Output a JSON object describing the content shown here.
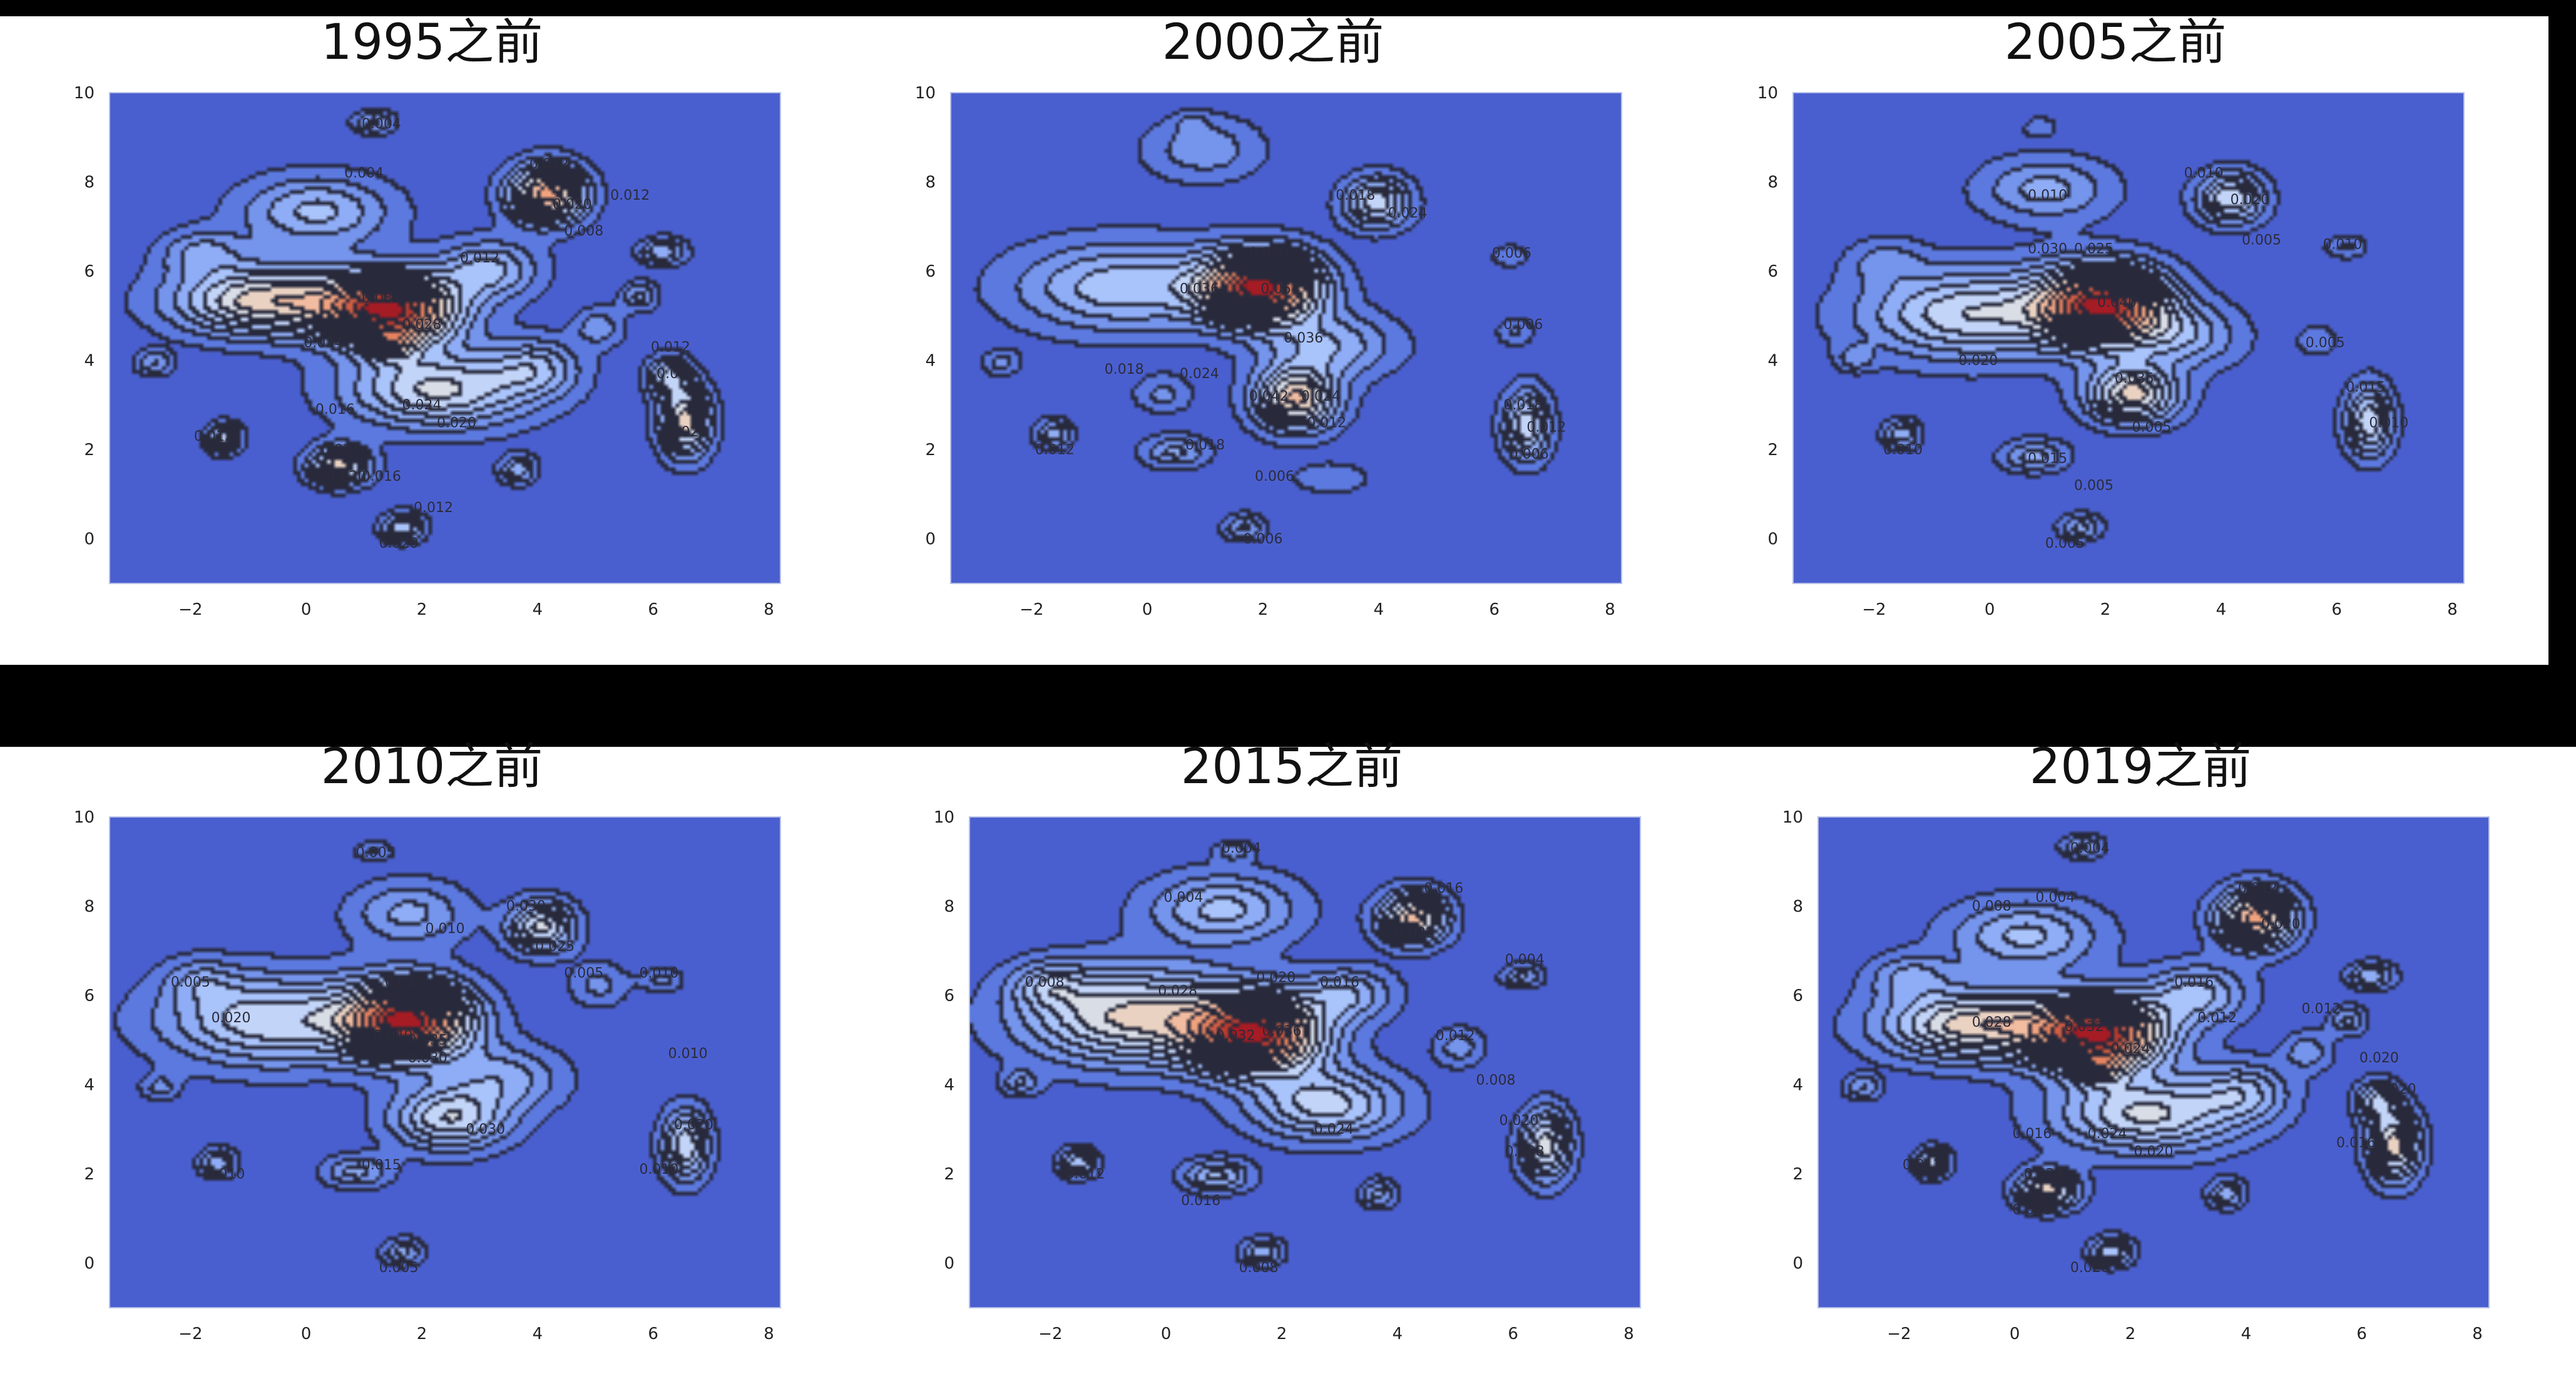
{
  "chart_data": [
    {
      "type": "contour",
      "title": "1995之前",
      "xlim": [
        -3.4,
        8.2
      ],
      "ylim": [
        -1,
        10
      ],
      "xticks": [
        "−2",
        "0",
        "2",
        "4",
        "6",
        "8"
      ],
      "xtick_values": [
        -2,
        0,
        2,
        4,
        6,
        8
      ],
      "yticks": [
        "0",
        "2",
        "4",
        "6",
        "8",
        "10"
      ],
      "ytick_values": [
        0,
        2,
        4,
        6,
        8,
        10
      ],
      "colormap": "coolwarm",
      "background_color": "#4a5fcf",
      "grid": false,
      "contour_labels": [
        {
          "text": "0.004",
          "x": 1.3,
          "y": 9.2
        },
        {
          "text": "0.004",
          "x": 1.0,
          "y": 8.1
        },
        {
          "text": "0.012",
          "x": 4.2,
          "y": 8.3
        },
        {
          "text": "0.020",
          "x": 4.6,
          "y": 7.4
        },
        {
          "text": "0.012",
          "x": 5.6,
          "y": 7.6
        },
        {
          "text": "0.008",
          "x": 4.8,
          "y": 6.8
        },
        {
          "text": "0.012",
          "x": 3.0,
          "y": 6.2
        },
        {
          "text": "0.032",
          "x": 1.3,
          "y": 5.3
        },
        {
          "text": "0.028",
          "x": 2.0,
          "y": 4.7
        },
        {
          "text": "0.024",
          "x": 0.3,
          "y": 4.3
        },
        {
          "text": "0.016",
          "x": 0.5,
          "y": 2.8
        },
        {
          "text": "0.024",
          "x": 2.0,
          "y": 2.9
        },
        {
          "text": "0.020",
          "x": 2.6,
          "y": 2.5
        },
        {
          "text": "0.024",
          "x": 0.6,
          "y": 1.9
        },
        {
          "text": "0.020",
          "x": 0.7,
          "y": 1.3
        },
        {
          "text": "0.016",
          "x": 1.3,
          "y": 1.3
        },
        {
          "text": "0.012",
          "x": 2.2,
          "y": 0.6
        },
        {
          "text": "0.020",
          "x": 1.6,
          "y": -0.2
        },
        {
          "text": "0.012",
          "x": 6.3,
          "y": 4.2
        },
        {
          "text": "0.020",
          "x": 6.4,
          "y": 3.6
        },
        {
          "text": "0.020",
          "x": 6.6,
          "y": 2.3
        },
        {
          "text": "0.012",
          "x": -1.6,
          "y": 2.2
        }
      ]
    },
    {
      "type": "contour",
      "title": "2000之前",
      "xlim": [
        -3.4,
        8.2
      ],
      "ylim": [
        -1,
        10
      ],
      "xticks": [
        "−2",
        "0",
        "2",
        "4",
        "6",
        "8"
      ],
      "xtick_values": [
        -2,
        0,
        2,
        4,
        6,
        8
      ],
      "yticks": [
        "0",
        "2",
        "4",
        "6",
        "8",
        "10"
      ],
      "ytick_values": [
        0,
        2,
        4,
        6,
        8,
        10
      ],
      "colormap": "coolwarm",
      "background_color": "#4a5fcf",
      "grid": false,
      "contour_labels": [
        {
          "text": "0.018",
          "x": 3.6,
          "y": 7.6
        },
        {
          "text": "0.024",
          "x": 4.5,
          "y": 7.2
        },
        {
          "text": "0.006",
          "x": 6.3,
          "y": 6.3
        },
        {
          "text": "0.030",
          "x": 2.1,
          "y": 6.3
        },
        {
          "text": "0.036",
          "x": 0.9,
          "y": 5.5
        },
        {
          "text": "0.054",
          "x": 2.3,
          "y": 5.5
        },
        {
          "text": "0.036",
          "x": 2.7,
          "y": 4.4
        },
        {
          "text": "0.006",
          "x": 6.5,
          "y": 4.7
        },
        {
          "text": "0.018",
          "x": -0.4,
          "y": 3.7
        },
        {
          "text": "0.024",
          "x": 0.9,
          "y": 3.6
        },
        {
          "text": "0.042",
          "x": 2.1,
          "y": 3.1
        },
        {
          "text": "0.024",
          "x": 3.0,
          "y": 3.1
        },
        {
          "text": "0.012",
          "x": 3.1,
          "y": 2.5
        },
        {
          "text": "0.018",
          "x": 1.0,
          "y": 2.0
        },
        {
          "text": "0.012",
          "x": -1.6,
          "y": 1.9
        },
        {
          "text": "0.006",
          "x": 2.2,
          "y": 1.3
        },
        {
          "text": "0.006",
          "x": 2.0,
          "y": -0.1
        },
        {
          "text": "0.018",
          "x": 6.5,
          "y": 2.9
        },
        {
          "text": "0.012",
          "x": 6.9,
          "y": 2.4
        },
        {
          "text": "0.006",
          "x": 6.6,
          "y": 1.8
        }
      ]
    },
    {
      "type": "contour",
      "title": "2005之前",
      "xlim": [
        -3.4,
        8.2
      ],
      "ylim": [
        -1,
        10
      ],
      "xticks": [
        "−2",
        "0",
        "2",
        "4",
        "6",
        "8"
      ],
      "xtick_values": [
        -2,
        0,
        2,
        4,
        6,
        8
      ],
      "yticks": [
        "0",
        "2",
        "4",
        "6",
        "8",
        "10"
      ],
      "ytick_values": [
        0,
        2,
        4,
        6,
        8,
        10
      ],
      "colormap": "coolwarm",
      "background_color": "#4a5fcf",
      "grid": false,
      "contour_labels": [
        {
          "text": "0.010",
          "x": 3.7,
          "y": 8.1
        },
        {
          "text": "0.010",
          "x": 1.0,
          "y": 7.6
        },
        {
          "text": "0.020",
          "x": 4.5,
          "y": 7.5
        },
        {
          "text": "0.005",
          "x": 4.7,
          "y": 6.6
        },
        {
          "text": "0.010",
          "x": 6.1,
          "y": 6.5
        },
        {
          "text": "0.030",
          "x": 1.0,
          "y": 6.4
        },
        {
          "text": "0.025",
          "x": 1.8,
          "y": 6.4
        },
        {
          "text": "0.040",
          "x": 2.2,
          "y": 5.2
        },
        {
          "text": "0.020",
          "x": -0.2,
          "y": 3.9
        },
        {
          "text": "0.035",
          "x": 2.5,
          "y": 3.5
        },
        {
          "text": "0.005",
          "x": 5.8,
          "y": 4.3
        },
        {
          "text": "0.015",
          "x": 6.5,
          "y": 3.3
        },
        {
          "text": "0.010",
          "x": 6.9,
          "y": 2.5
        },
        {
          "text": "0.015",
          "x": 1.0,
          "y": 1.7
        },
        {
          "text": "0.005",
          "x": 1.8,
          "y": 1.1
        },
        {
          "text": "0.005",
          "x": 2.8,
          "y": 2.4
        },
        {
          "text": "0.010",
          "x": -1.5,
          "y": 1.9
        },
        {
          "text": "0.005",
          "x": 1.3,
          "y": -0.2
        }
      ]
    },
    {
      "type": "contour",
      "title": "2010之前",
      "xlim": [
        -3.4,
        8.2
      ],
      "ylim": [
        -1,
        10
      ],
      "xticks": [
        "−2",
        "0",
        "2",
        "4",
        "6",
        "8"
      ],
      "xtick_values": [
        -2,
        0,
        2,
        4,
        6,
        8
      ],
      "yticks": [
        "0",
        "2",
        "4",
        "6",
        "8",
        "10"
      ],
      "ytick_values": [
        0,
        2,
        4,
        6,
        8,
        10
      ],
      "colormap": "coolwarm",
      "background_color": "#4a5fcf",
      "grid": false,
      "contour_labels": [
        {
          "text": "0.005",
          "x": 1.2,
          "y": 9.1
        },
        {
          "text": "0.030",
          "x": 3.8,
          "y": 7.9
        },
        {
          "text": "0.025",
          "x": 4.3,
          "y": 7.0
        },
        {
          "text": "0.010",
          "x": 2.4,
          "y": 7.4
        },
        {
          "text": "0.005",
          "x": 4.8,
          "y": 6.4
        },
        {
          "text": "0.010",
          "x": 6.1,
          "y": 6.4
        },
        {
          "text": "0.005",
          "x": -2.0,
          "y": 6.2
        },
        {
          "text": "0.020",
          "x": -1.3,
          "y": 5.4
        },
        {
          "text": "0.025",
          "x": 1.7,
          "y": 6.2
        },
        {
          "text": "0.040",
          "x": 1.5,
          "y": 5.0
        },
        {
          "text": "0.035",
          "x": 2.1,
          "y": 4.9
        },
        {
          "text": "0.030",
          "x": 2.1,
          "y": 4.5
        },
        {
          "text": "0.010",
          "x": 6.6,
          "y": 4.6
        },
        {
          "text": "0.030",
          "x": 3.1,
          "y": 2.9
        },
        {
          "text": "0.020",
          "x": 6.7,
          "y": 3.0
        },
        {
          "text": "0.010",
          "x": 6.1,
          "y": 2.0
        },
        {
          "text": "0.015",
          "x": 1.3,
          "y": 2.1
        },
        {
          "text": "0.010",
          "x": -1.4,
          "y": 1.9
        },
        {
          "text": "0.005",
          "x": 1.6,
          "y": -0.2
        }
      ]
    },
    {
      "type": "contour",
      "title": "2015之前",
      "xlim": [
        -3.4,
        8.2
      ],
      "ylim": [
        -1,
        10
      ],
      "xticks": [
        "−2",
        "0",
        "2",
        "4",
        "6",
        "8"
      ],
      "xtick_values": [
        -2,
        0,
        2,
        4,
        6,
        8
      ],
      "yticks": [
        "0",
        "2",
        "4",
        "6",
        "8",
        "10"
      ],
      "ytick_values": [
        0,
        2,
        4,
        6,
        8,
        10
      ],
      "colormap": "coolwarm",
      "background_color": "#4a5fcf",
      "grid": false,
      "contour_labels": [
        {
          "text": "0.004",
          "x": 1.3,
          "y": 9.2
        },
        {
          "text": "0.004",
          "x": 0.3,
          "y": 8.1
        },
        {
          "text": "0.016",
          "x": 4.8,
          "y": 8.3
        },
        {
          "text": "0.032",
          "x": 4.3,
          "y": 7.3
        },
        {
          "text": "0.004",
          "x": 6.2,
          "y": 6.7
        },
        {
          "text": "0.008",
          "x": -2.1,
          "y": 6.2
        },
        {
          "text": "0.028",
          "x": 0.2,
          "y": 6.0
        },
        {
          "text": "0.020",
          "x": 1.9,
          "y": 6.3
        },
        {
          "text": "0.016",
          "x": 3.0,
          "y": 6.2
        },
        {
          "text": "0.032",
          "x": 1.2,
          "y": 5.0
        },
        {
          "text": "0.036",
          "x": 2.0,
          "y": 5.1
        },
        {
          "text": "0.012",
          "x": 5.0,
          "y": 5.0
        },
        {
          "text": "0.008",
          "x": 5.7,
          "y": 4.0
        },
        {
          "text": "0.020",
          "x": 6.1,
          "y": 3.1
        },
        {
          "text": "0.024",
          "x": 2.9,
          "y": 2.9
        },
        {
          "text": "0.008",
          "x": 6.2,
          "y": 2.4
        },
        {
          "text": "0.012",
          "x": -1.4,
          "y": 1.9
        },
        {
          "text": "0.016",
          "x": 0.6,
          "y": 1.3
        },
        {
          "text": "0.008",
          "x": 1.6,
          "y": -0.2
        }
      ]
    },
    {
      "type": "contour",
      "title": "2019之前",
      "xlim": [
        -3.4,
        8.2
      ],
      "ylim": [
        -1,
        10
      ],
      "xticks": [
        "−2",
        "0",
        "2",
        "4",
        "6",
        "8"
      ],
      "xtick_values": [
        -2,
        0,
        2,
        4,
        6,
        8
      ],
      "yticks": [
        "0",
        "2",
        "4",
        "6",
        "8",
        "10"
      ],
      "ytick_values": [
        0,
        2,
        4,
        6,
        8,
        10
      ],
      "colormap": "coolwarm",
      "background_color": "#4a5fcf",
      "grid": false,
      "contour_labels": [
        {
          "text": "0.004",
          "x": 1.3,
          "y": 9.2
        },
        {
          "text": "0.008",
          "x": -0.4,
          "y": 7.9
        },
        {
          "text": "0.004",
          "x": 0.7,
          "y": 8.1
        },
        {
          "text": "0.012",
          "x": 4.2,
          "y": 8.3
        },
        {
          "text": "0.020",
          "x": 4.6,
          "y": 7.5
        },
        {
          "text": "0.016",
          "x": 3.1,
          "y": 6.2
        },
        {
          "text": "0.012",
          "x": 3.5,
          "y": 5.4
        },
        {
          "text": "0.012",
          "x": 5.3,
          "y": 5.6
        },
        {
          "text": "0.028",
          "x": -0.4,
          "y": 5.3
        },
        {
          "text": "0.032",
          "x": 1.2,
          "y": 5.2
        },
        {
          "text": "0.024",
          "x": 2.0,
          "y": 4.7
        },
        {
          "text": "0.020",
          "x": 6.3,
          "y": 4.5
        },
        {
          "text": "0.020",
          "x": 6.6,
          "y": 3.8
        },
        {
          "text": "0.024",
          "x": 1.6,
          "y": 2.8
        },
        {
          "text": "0.016",
          "x": 0.3,
          "y": 2.8
        },
        {
          "text": "0.020",
          "x": 2.4,
          "y": 2.4
        },
        {
          "text": "0.024",
          "x": 0.5,
          "y": 1.9
        },
        {
          "text": "0.028",
          "x": 0.3,
          "y": 1.1
        },
        {
          "text": "0.016",
          "x": 5.9,
          "y": 2.6
        },
        {
          "text": "0.012",
          "x": -1.6,
          "y": 2.1
        },
        {
          "text": "0.020",
          "x": 1.3,
          "y": -0.2
        }
      ]
    }
  ]
}
